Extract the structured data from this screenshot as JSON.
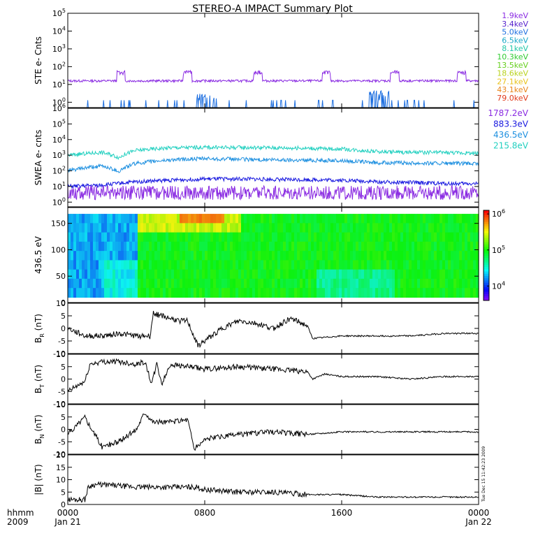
{
  "title": "STEREO-A IMPACT Summary Plot",
  "stamp": "Tue Dec 15 11:42:23 2009",
  "x_axis": {
    "corner_labels": [
      "hhmm",
      "2009"
    ],
    "ticks": [
      {
        "t": 0,
        "label": "0000",
        "date": "Jan 21"
      },
      {
        "t": 8,
        "label": "0800",
        "date": ""
      },
      {
        "t": 16,
        "label": "1600",
        "date": ""
      },
      {
        "t": 24,
        "label": "0000",
        "date": "Jan 22"
      }
    ],
    "range_hours": [
      0,
      24
    ]
  },
  "legend_ste": [
    {
      "label": "1.9keV",
      "color": "#8a2be2"
    },
    {
      "label": "3.4keV",
      "color": "#5522cc"
    },
    {
      "label": "5.0keV",
      "color": "#1e6fe0"
    },
    {
      "label": "6.5keV",
      "color": "#19a8c8"
    },
    {
      "label": "8.1keV",
      "color": "#22c7a8"
    },
    {
      "label": "10.3keV",
      "color": "#33cc33"
    },
    {
      "label": "13.5keV",
      "color": "#66d01e"
    },
    {
      "label": "18.6keV",
      "color": "#b9d21e"
    },
    {
      "label": "27.1keV",
      "color": "#e8c21a"
    },
    {
      "label": "43.1keV",
      "color": "#e8841a"
    },
    {
      "label": "79.0keV",
      "color": "#e03a1a"
    }
  ],
  "legend_swea": [
    {
      "label": "1787.2eV",
      "color": "#8a2be2"
    },
    {
      "label": "883.3eV",
      "color": "#1a1ae0"
    },
    {
      "label": "436.5eV",
      "color": "#1e90e0"
    },
    {
      "label": "215.8eV",
      "color": "#22d0c0"
    }
  ],
  "colorbar": {
    "labels": [
      "10^6",
      "10^5",
      "10^4"
    ],
    "range_log": [
      3.6,
      6.1
    ]
  },
  "chart_data": [
    {
      "type": "line",
      "ylabel": "STE e- Cnts",
      "log_y": true,
      "ylim": [
        0.5,
        100000
      ],
      "ytick_labels": [
        "10^0",
        "10^1",
        "10^2",
        "10^3",
        "10^4",
        "10^5"
      ],
      "series": [
        {
          "name": "1.9keV",
          "color": "#8a2be2",
          "baseline": 16,
          "bursts": [
            {
              "t": 3.1,
              "value": 50
            },
            {
              "t": 7.0,
              "value": 50
            },
            {
              "t": 11.1,
              "value": 50
            },
            {
              "t": 15.1,
              "value": 50
            },
            {
              "t": 19.1,
              "value": 50
            },
            {
              "t": 23.0,
              "value": 50
            }
          ]
        },
        {
          "name": "5.0keV",
          "color": "#1e6fe0",
          "baseline": 1,
          "bursts": [
            {
              "t": 8.1,
              "value": 2
            },
            {
              "t": 18.2,
              "value": 3
            }
          ]
        }
      ]
    },
    {
      "type": "line",
      "ylabel": "SWEA e- cnts",
      "log_y": true,
      "ylim": [
        0.5,
        1000000
      ],
      "ytick_labels": [
        "10^0",
        "10^1",
        "10^2",
        "10^3",
        "10^4",
        "10^5",
        "10^6"
      ],
      "series": [
        {
          "name": "215.8eV",
          "color": "#22d0c0",
          "t": [
            0,
            2,
            3,
            4,
            6,
            8,
            10,
            12,
            14,
            16,
            18,
            20,
            22,
            24
          ],
          "values": [
            1000,
            1500,
            700,
            2000,
            3000,
            3200,
            3100,
            3000,
            2800,
            2500,
            1700,
            1500,
            1500,
            1300
          ]
        },
        {
          "name": "436.5eV",
          "color": "#1e90e0",
          "t": [
            0,
            2,
            3,
            4,
            6,
            8,
            10,
            12,
            14,
            16,
            18,
            20,
            22,
            24
          ],
          "values": [
            100,
            200,
            90,
            300,
            500,
            600,
            550,
            500,
            480,
            450,
            330,
            320,
            300,
            280
          ]
        },
        {
          "name": "883.3eV",
          "color": "#1a1ae0",
          "t": [
            0,
            2,
            4,
            6,
            8,
            10,
            12,
            14,
            16,
            18,
            20,
            22,
            24
          ],
          "values": [
            10,
            12,
            20,
            25,
            30,
            30,
            28,
            27,
            25,
            20,
            18,
            15,
            15
          ]
        },
        {
          "name": "1787.2eV",
          "color": "#8a2be2",
          "t": [
            0,
            4,
            8,
            12,
            16,
            20,
            24
          ],
          "values": [
            4,
            4,
            4,
            4,
            4,
            4,
            4
          ]
        }
      ]
    },
    {
      "type": "heatmap",
      "ylabel": "436.5 eV",
      "ylim": [
        0,
        180
      ],
      "ytick_labels": [
        "0",
        "50",
        "100",
        "150"
      ],
      "description_values": {
        "z_log_range": [
          3.6,
          6.1
        ]
      }
    },
    {
      "type": "line",
      "ylabel": "B",
      "ylabel_sub": "R",
      "ylabel_unit": "(nT)",
      "ylim": [
        -10,
        10
      ],
      "ytick_labels": [
        "-10",
        "-5",
        "0",
        "5",
        "10"
      ],
      "t": [
        0,
        1,
        2,
        3,
        4,
        4.8,
        5.0,
        5.5,
        6.5,
        7.0,
        7.6,
        8.0,
        9.0,
        10.0,
        11.0,
        12.0,
        13.0,
        14.0,
        14.3,
        16.0,
        18.0,
        20.0,
        22.0,
        24.0
      ],
      "values": [
        0,
        -3,
        -3,
        -2,
        -3,
        -3,
        6,
        5,
        3,
        3,
        -7,
        -5,
        0,
        3,
        2,
        0,
        4,
        1,
        -4,
        -3,
        -3,
        -3,
        -2,
        -2
      ]
    },
    {
      "type": "line",
      "ylabel": "B",
      "ylabel_sub": "T",
      "ylabel_unit": "(nT)",
      "ylim": [
        -10,
        10
      ],
      "ytick_labels": [
        "-10",
        "-5",
        "0",
        "5",
        "10"
      ],
      "t": [
        0,
        0.5,
        1.0,
        1.3,
        2.0,
        3.0,
        4.0,
        4.5,
        4.9,
        5.2,
        5.5,
        6.0,
        7.0,
        8.0,
        10.0,
        12.0,
        14.0,
        14.3,
        15.0,
        16.0,
        18.0,
        20.0,
        22.0,
        24.0
      ],
      "values": [
        -5,
        -3,
        -1,
        6,
        7,
        7,
        6,
        7,
        -2,
        6,
        -2,
        6,
        5,
        4,
        5,
        4,
        3,
        0,
        2,
        1,
        1,
        0,
        1,
        1
      ]
    },
    {
      "type": "line",
      "ylabel": "B",
      "ylabel_sub": "N",
      "ylabel_unit": "(nT)",
      "ylim": [
        -10,
        10
      ],
      "ytick_labels": [
        "-10",
        "-5",
        "0",
        "5",
        "10"
      ],
      "t": [
        0,
        1,
        2,
        3,
        4,
        4.5,
        5.0,
        6.0,
        7.0,
        7.4,
        8.0,
        10.0,
        12.0,
        14.0,
        16.0,
        18.0,
        20.0,
        22.0,
        24.0
      ],
      "values": [
        -2,
        5,
        -7,
        -5,
        0,
        7,
        3,
        3,
        4,
        -8,
        -4,
        -2,
        -1,
        -2,
        -1,
        -1,
        -1,
        -1,
        -1
      ]
    },
    {
      "type": "line",
      "ylabel": "|B| (nT)",
      "ylim": [
        0,
        20
      ],
      "ytick_labels": [
        "0",
        "5",
        "10",
        "15",
        "20"
      ],
      "t": [
        0,
        1.0,
        1.2,
        1.5,
        2.0,
        4.0,
        6.0,
        7.5,
        8.0,
        10.0,
        12.0,
        14.0,
        16.0,
        18.0,
        20.0,
        24.0
      ],
      "values": [
        2,
        2,
        7,
        8,
        8,
        7,
        7,
        7,
        6,
        5,
        5,
        4,
        4,
        3,
        3,
        3
      ]
    }
  ]
}
